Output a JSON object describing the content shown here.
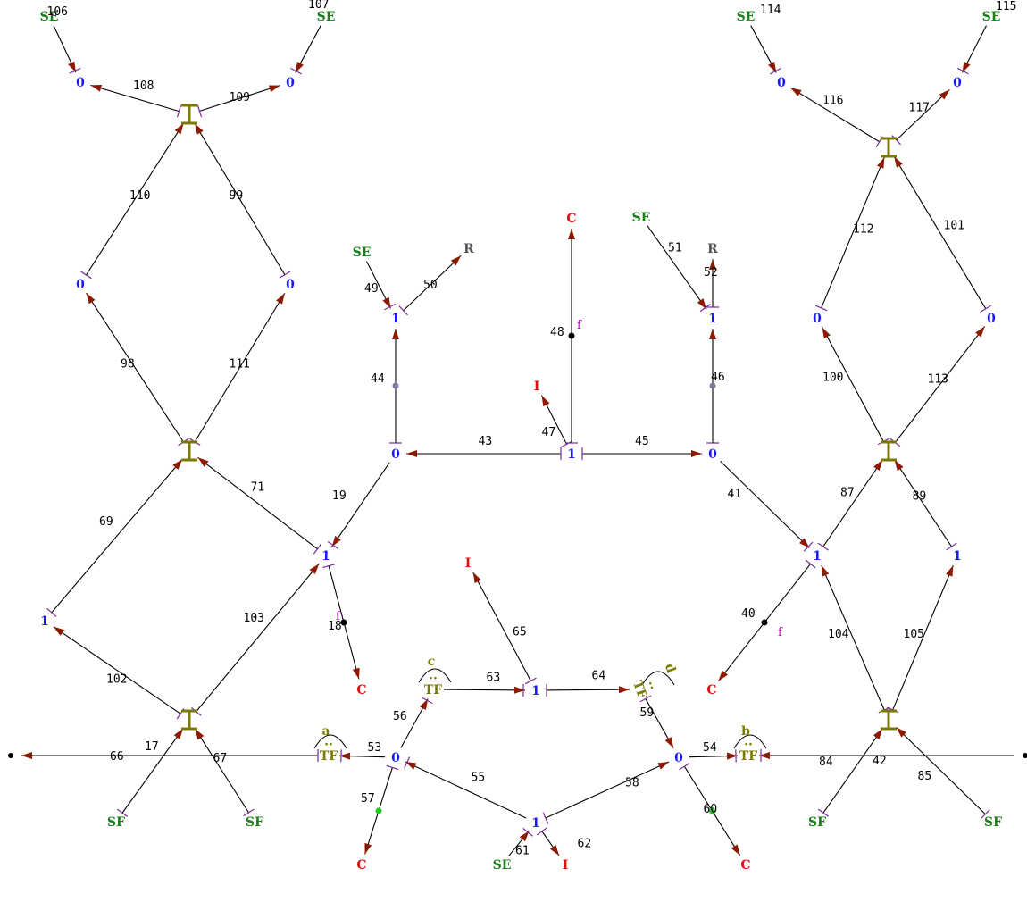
{
  "diagram": {
    "kind": "bond-graph",
    "colors": {
      "source": "#1a7f1a",
      "junction": "#1a1aff",
      "element": "#e01010",
      "transformer": "#7a7a00",
      "bond": "#000000",
      "arrowhead": "#8b1a00",
      "stroke_marker": "#7a2a9a",
      "flow_label": "#c000c0"
    },
    "nodes": [
      {
        "id": "se106",
        "label": "SE"
      },
      {
        "id": "se107",
        "label": "SE"
      },
      {
        "id": "z106",
        "label": "0"
      },
      {
        "id": "z107",
        "label": "0"
      },
      {
        "id": "iL1",
        "label": "I"
      },
      {
        "id": "zL110",
        "label": "0"
      },
      {
        "id": "zL99",
        "label": "0"
      },
      {
        "id": "iL2",
        "label": "I"
      },
      {
        "id": "oL1",
        "label": "1"
      },
      {
        "id": "oL2",
        "label": "1"
      },
      {
        "id": "iL3",
        "label": "I"
      },
      {
        "id": "dotL",
        "label": ""
      },
      {
        "id": "sfL66",
        "label": "SF"
      },
      {
        "id": "sfL67",
        "label": "SF"
      },
      {
        "id": "cL18",
        "label": "C"
      },
      {
        "id": "tfA",
        "label": "TF"
      },
      {
        "id": "tfA_mod",
        "label": "a"
      },
      {
        "id": "zBL",
        "label": "0"
      },
      {
        "id": "cB57",
        "label": "C"
      },
      {
        "id": "tfC",
        "label": "TF"
      },
      {
        "id": "tfC_mod",
        "label": "c"
      },
      {
        "id": "oB",
        "label": "1"
      },
      {
        "id": "seB61",
        "label": "SE"
      },
      {
        "id": "iB62",
        "label": "I"
      },
      {
        "id": "oMid",
        "label": "1"
      },
      {
        "id": "iMid",
        "label": "I"
      },
      {
        "id": "tfD",
        "label": "TF"
      },
      {
        "id": "tfD_mod",
        "label": "d"
      },
      {
        "id": "zBR",
        "label": "0"
      },
      {
        "id": "cB60",
        "label": "C"
      },
      {
        "id": "tfB",
        "label": "TF"
      },
      {
        "id": "tfB_mod",
        "label": "b"
      },
      {
        "id": "se49",
        "label": "SE"
      },
      {
        "id": "r50",
        "label": "R"
      },
      {
        "id": "o44",
        "label": "1"
      },
      {
        "id": "z43",
        "label": "0"
      },
      {
        "id": "cTop",
        "label": "C"
      },
      {
        "id": "i47",
        "label": "I"
      },
      {
        "id": "oCenter",
        "label": "1"
      },
      {
        "id": "se51",
        "label": "SE"
      },
      {
        "id": "r52",
        "label": "R"
      },
      {
        "id": "o46",
        "label": "1"
      },
      {
        "id": "z45",
        "label": "0"
      },
      {
        "id": "oR1",
        "label": "1"
      },
      {
        "id": "oR2",
        "label": "1"
      },
      {
        "id": "cR40",
        "label": "C"
      },
      {
        "id": "iR3",
        "label": "I"
      },
      {
        "id": "dotR",
        "label": ""
      },
      {
        "id": "sfR84",
        "label": "SF"
      },
      {
        "id": "sfR85",
        "label": "SF"
      },
      {
        "id": "iR2",
        "label": "I"
      },
      {
        "id": "zR112",
        "label": "0"
      },
      {
        "id": "zR101",
        "label": "0"
      },
      {
        "id": "iR1",
        "label": "I"
      },
      {
        "id": "z114",
        "label": "0"
      },
      {
        "id": "z115",
        "label": "0"
      },
      {
        "id": "se114",
        "label": "SE"
      },
      {
        "id": "se115",
        "label": "SE"
      }
    ],
    "bonds": [
      {
        "id": "106",
        "from": "se106",
        "to": "z106"
      },
      {
        "id": "107",
        "from": "se107",
        "to": "z107"
      },
      {
        "id": "108",
        "from": "iL1",
        "to": "z106"
      },
      {
        "id": "109",
        "from": "iL1",
        "to": "z107"
      },
      {
        "id": "110",
        "from": "zL110",
        "to": "iL1"
      },
      {
        "id": "99",
        "from": "zL99",
        "to": "iL1"
      },
      {
        "id": "98",
        "from": "iL2",
        "to": "zL110"
      },
      {
        "id": "111",
        "from": "iL2",
        "to": "zL99"
      },
      {
        "id": "69",
        "from": "oL1",
        "to": "iL2"
      },
      {
        "id": "71",
        "from": "oL2",
        "to": "iL2"
      },
      {
        "id": "102",
        "from": "iL3",
        "to": "oL1"
      },
      {
        "id": "103",
        "from": "iL3",
        "to": "oL2"
      },
      {
        "id": "19",
        "from": "z43",
        "to": "oL2"
      },
      {
        "id": "18",
        "from": "oL2",
        "to": "cL18"
      },
      {
        "id": "17",
        "from": "tfA",
        "to": "dotL"
      },
      {
        "id": "66",
        "from": "sfL66",
        "to": "iL3"
      },
      {
        "id": "67",
        "from": "sfL67",
        "to": "iL3"
      },
      {
        "id": "53",
        "from": "zBL",
        "to": "tfA"
      },
      {
        "id": "56",
        "from": "zBL",
        "to": "tfC"
      },
      {
        "id": "57",
        "from": "zBL",
        "to": "cB57"
      },
      {
        "id": "55",
        "from": "oB",
        "to": "zBL"
      },
      {
        "id": "58",
        "from": "oB",
        "to": "zBR"
      },
      {
        "id": "61",
        "from": "seB61",
        "to": "oB"
      },
      {
        "id": "62",
        "from": "oB",
        "to": "iB62"
      },
      {
        "id": "63",
        "from": "tfC",
        "to": "oMid"
      },
      {
        "id": "64",
        "from": "oMid",
        "to": "tfD"
      },
      {
        "id": "65",
        "from": "oMid",
        "to": "iMid"
      },
      {
        "id": "59",
        "from": "tfD",
        "to": "zBR"
      },
      {
        "id": "60",
        "from": "zBR",
        "to": "cB60"
      },
      {
        "id": "54",
        "from": "zBR",
        "to": "tfB"
      },
      {
        "id": "42",
        "from": "dotR",
        "to": "tfB"
      },
      {
        "id": "49",
        "from": "se49",
        "to": "o44"
      },
      {
        "id": "50",
        "from": "o44",
        "to": "r50"
      },
      {
        "id": "44",
        "from": "z43",
        "to": "o44"
      },
      {
        "id": "43",
        "from": "oCenter",
        "to": "z43"
      },
      {
        "id": "45",
        "from": "oCenter",
        "to": "z45"
      },
      {
        "id": "47",
        "from": "oCenter",
        "to": "i47"
      },
      {
        "id": "48",
        "from": "oCenter",
        "to": "cTop"
      },
      {
        "id": "51",
        "from": "se51",
        "to": "o46"
      },
      {
        "id": "52",
        "from": "o46",
        "to": "r52"
      },
      {
        "id": "46",
        "from": "z45",
        "to": "o46"
      },
      {
        "id": "41",
        "from": "z45",
        "to": "oR1"
      },
      {
        "id": "40",
        "from": "oR1",
        "to": "cR40"
      },
      {
        "id": "87",
        "from": "oR1",
        "to": "iR2"
      },
      {
        "id": "89",
        "from": "oR2",
        "to": "iR2"
      },
      {
        "id": "104",
        "from": "iR3",
        "to": "oR1"
      },
      {
        "id": "105",
        "from": "iR3",
        "to": "oR2"
      },
      {
        "id": "84",
        "from": "sfR84",
        "to": "iR3"
      },
      {
        "id": "85",
        "from": "sfR85",
        "to": "iR3"
      },
      {
        "id": "100",
        "from": "iR2",
        "to": "zR112"
      },
      {
        "id": "113",
        "from": "iR2",
        "to": "zR101"
      },
      {
        "id": "112",
        "from": "zR112",
        "to": "iR1"
      },
      {
        "id": "101",
        "from": "zR101",
        "to": "iR1"
      },
      {
        "id": "116",
        "from": "iR1",
        "to": "z114"
      },
      {
        "id": "117",
        "from": "iR1",
        "to": "z115"
      },
      {
        "id": "114",
        "from": "se114",
        "to": "z114"
      },
      {
        "id": "115",
        "from": "se115",
        "to": "z115"
      }
    ],
    "flow_markers": [
      "f",
      "f",
      "f"
    ]
  }
}
